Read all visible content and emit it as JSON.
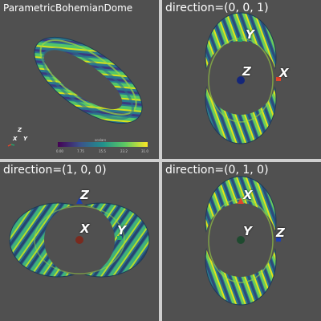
{
  "colors": {
    "viewport_bg": "#505050",
    "separator": "#cfcfcf",
    "x_axis": "#e0452a",
    "y_axis": "#23a46c",
    "z_axis": "#1e3fb0"
  },
  "viewports": [
    {
      "title": "ParametricBohemianDome",
      "orientation_axes": {
        "x": "X",
        "y": "Y",
        "z": "Z"
      },
      "scalar_bar": {
        "title": "scalars",
        "ticks": [
          "0.00",
          "7.75",
          "15.5",
          "23.2",
          "31.0"
        ],
        "colormap": "viridis"
      }
    },
    {
      "title": "direction=(0, 0, 1)",
      "axes": {
        "x": "X",
        "y": "Y",
        "z": "Z"
      }
    },
    {
      "title": "direction=(1, 0, 0)",
      "axes": {
        "x": "X",
        "y": "Y",
        "z": "Z"
      }
    },
    {
      "title": "direction=(0, 1, 0)",
      "axes": {
        "x": "X",
        "y": "Y",
        "z": "Z"
      }
    }
  ]
}
